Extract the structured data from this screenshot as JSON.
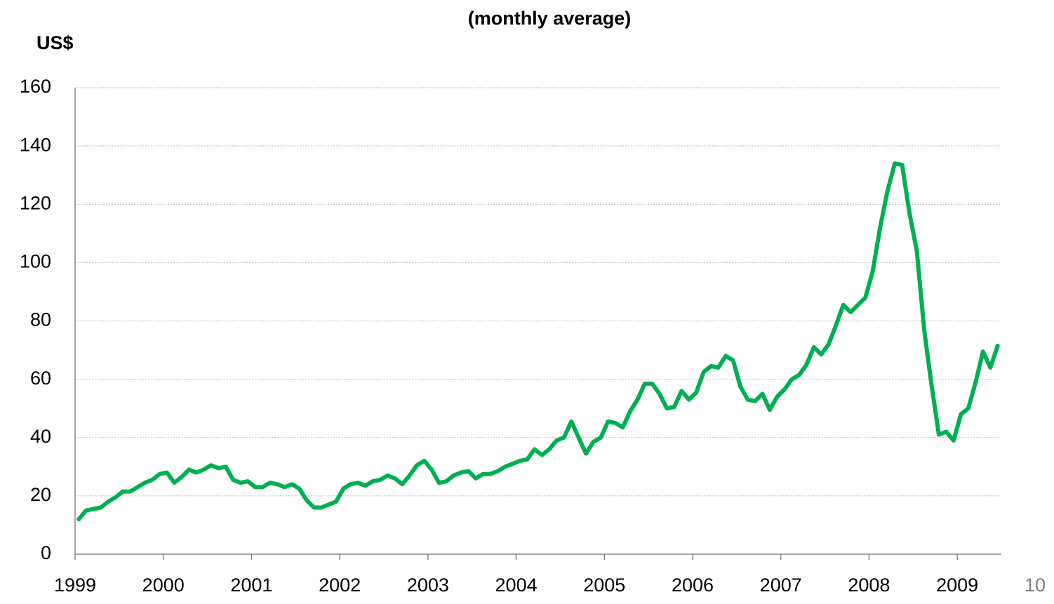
{
  "chart_data": {
    "type": "line",
    "title": "(monthly average)",
    "y_axis_label": "US$",
    "page_number": "10",
    "categories": [
      "1999",
      null,
      null,
      null,
      null,
      null,
      null,
      null,
      null,
      null,
      null,
      null,
      "2000",
      null,
      null,
      null,
      null,
      null,
      null,
      null,
      null,
      null,
      null,
      null,
      "2001",
      null,
      null,
      null,
      null,
      null,
      null,
      null,
      null,
      null,
      null,
      null,
      "2002",
      null,
      null,
      null,
      null,
      null,
      null,
      null,
      null,
      null,
      null,
      null,
      "2003",
      null,
      null,
      null,
      null,
      null,
      null,
      null,
      null,
      null,
      null,
      null,
      "2004",
      null,
      null,
      null,
      null,
      null,
      null,
      null,
      null,
      null,
      null,
      null,
      "2005",
      null,
      null,
      null,
      null,
      null,
      null,
      null,
      null,
      null,
      null,
      null,
      "2006",
      null,
      null,
      null,
      null,
      null,
      null,
      null,
      null,
      null,
      null,
      null,
      "2007",
      null,
      null,
      null,
      null,
      null,
      null,
      null,
      null,
      null,
      null,
      null,
      "2008",
      null,
      null,
      null,
      null,
      null,
      null,
      null,
      null,
      null,
      null,
      null,
      "2009",
      null,
      null,
      null,
      null,
      null
    ],
    "series": [
      {
        "color": "#00b050",
        "values": [
          12,
          15,
          15.5,
          16,
          18,
          19.5,
          21.5,
          21.5,
          23,
          24.5,
          25.5,
          27.5,
          28,
          24.5,
          26.5,
          29,
          28,
          29,
          30.5,
          29.5,
          30,
          25.5,
          24.5,
          25,
          23,
          23,
          24.5,
          24,
          23,
          24,
          22.5,
          18.5,
          16,
          16,
          17,
          18,
          22.5,
          24,
          24.5,
          23.5,
          25,
          25.5,
          27,
          26,
          24,
          27,
          30.5,
          32,
          29,
          24.5,
          25,
          27,
          28,
          28.5,
          26,
          27.5,
          27.5,
          28.5,
          30,
          31,
          32,
          32.5,
          36,
          34,
          36,
          39,
          40,
          45.5,
          40,
          34.5,
          38.5,
          40,
          45.5,
          45,
          43.5,
          49,
          53,
          58.5,
          58.5,
          55,
          50,
          50.5,
          56,
          53,
          55.5,
          62.5,
          64.5,
          64,
          68,
          66.5,
          57.5,
          53,
          52.5,
          55,
          49.5,
          54,
          56.5,
          60,
          61.5,
          65,
          71,
          68.5,
          72,
          78.5,
          85.5,
          83,
          85.5,
          88,
          97,
          112,
          124.5,
          134,
          133.5,
          117,
          104,
          77,
          58,
          41,
          42,
          39,
          48,
          50,
          59,
          69.5,
          64,
          71.5
        ]
      }
    ],
    "ylim": [
      0,
      160
    ],
    "yticks": [
      0,
      20,
      40,
      60,
      80,
      100,
      120,
      140,
      160
    ],
    "grid": true
  }
}
